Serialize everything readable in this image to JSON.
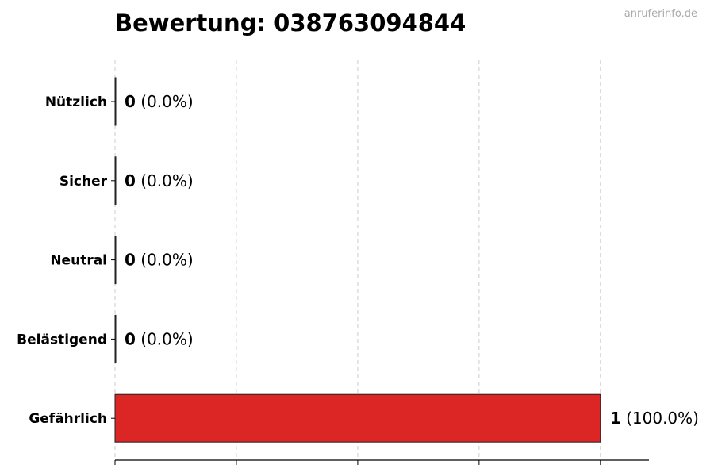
{
  "chart_data": {
    "type": "bar",
    "orientation": "horizontal",
    "title": "Bewertung: 038763094844",
    "categories": [
      "Nützlich",
      "Sicher",
      "Neutral",
      "Belästigend",
      "Gefährlich"
    ],
    "values": [
      0,
      0,
      0,
      0,
      1
    ],
    "value_labels": [
      "0",
      "0",
      "0",
      "0",
      "1"
    ],
    "percent_labels": [
      "(0.0%)",
      "(0.0%)",
      "(0.0%)",
      "(0.0%)",
      "(100.0%)"
    ],
    "xlabel": "",
    "ylabel": "",
    "xlim": [
      0,
      1.1
    ],
    "xticks": [
      0,
      0.25,
      0.5,
      0.75,
      1
    ],
    "grid": "vertical dashed",
    "bar_color": "#dc2626",
    "legend": "none"
  },
  "watermark": "anruferinfo.de"
}
